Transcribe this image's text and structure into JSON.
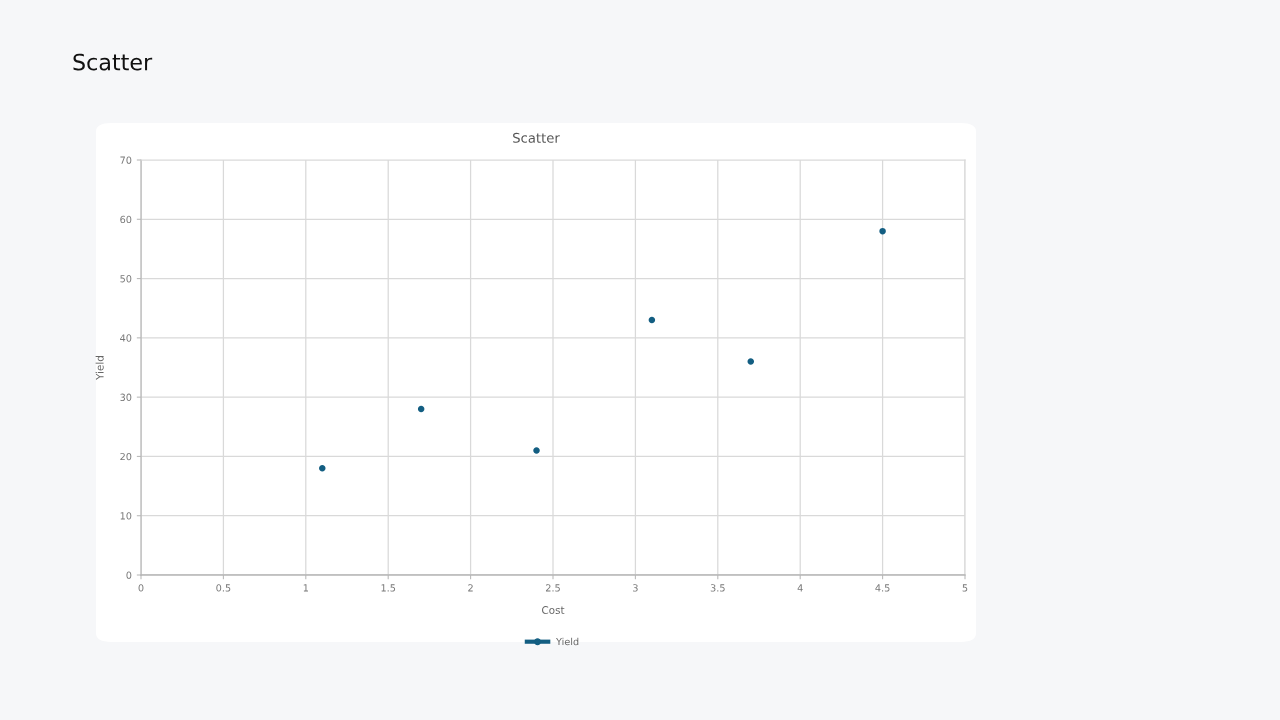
{
  "chart_data": {
    "type": "scatter",
    "title": "Scatter",
    "xlabel": "Cost",
    "ylabel": "Yield",
    "annotations": [
      "Scatter"
    ],
    "x": [
      1.1,
      1.7,
      2.4,
      3.1,
      3.7,
      4.5
    ],
    "series": [
      {
        "name": "Yield",
        "color": "#135e82",
        "values": [
          18,
          28,
          21,
          43,
          36,
          58
        ]
      }
    ],
    "xlim": [
      0,
      5
    ],
    "xticks": [
      0,
      0.5,
      1,
      1.5,
      2,
      2.5,
      3,
      3.5,
      4,
      4.5,
      5
    ],
    "ylim": [
      0,
      70
    ],
    "yticks": [
      0,
      10,
      20,
      30,
      40,
      50,
      60,
      70
    ],
    "grid": true,
    "legend": "bottom",
    "marker": "circle"
  }
}
